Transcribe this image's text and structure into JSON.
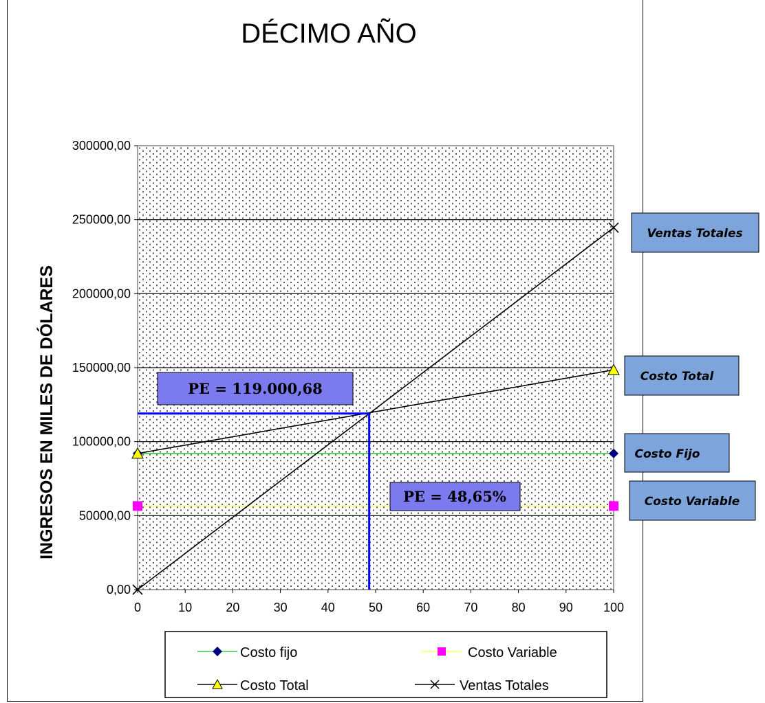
{
  "chart_data": {
    "type": "line",
    "title": "DÉCIMO AÑO",
    "xlabel": "",
    "ylabel": "INGRESOS EN MILES DE DÓLARES",
    "xlim": [
      0,
      100
    ],
    "ylim": [
      0,
      300000
    ],
    "x_ticks": [
      "0",
      "10",
      "20",
      "30",
      "40",
      "50",
      "60",
      "70",
      "80",
      "90",
      "100"
    ],
    "y_ticks": [
      "0,00",
      "50000,00",
      "100000,00",
      "150000,00",
      "200000,00",
      "250000,00",
      "300000,00"
    ],
    "grid": "horizontal",
    "legend_position": "bottom",
    "series": [
      {
        "name": "Costo fijo",
        "x": [
          0,
          100
        ],
        "y": [
          92000,
          92000
        ],
        "line_color": "#33cc33",
        "marker": "diamond",
        "marker_color": "#000080"
      },
      {
        "name": "Costo Variable",
        "x": [
          0,
          100
        ],
        "y": [
          56500,
          56500
        ],
        "line_color": "#ffff66",
        "marker": "square",
        "marker_color": "#ff00ff"
      },
      {
        "name": "Costo Total",
        "x": [
          0,
          100
        ],
        "y": [
          92000,
          148500
        ],
        "line_color": "#000000",
        "marker": "triangle",
        "marker_color": "#ffff00"
      },
      {
        "name": "Ventas Totales",
        "x": [
          0,
          100
        ],
        "y": [
          0,
          244600
        ],
        "line_color": "#000000",
        "marker": "x",
        "marker_color": "#000000"
      }
    ],
    "break_even": {
      "x": 48.65,
      "y": 119000.68,
      "line_color": "#0000ff"
    },
    "annotations": {
      "pe_value": "PE = 119.000,68",
      "pe_percent": "PE = 48,65%",
      "ventas_totales": "Ventas Totales",
      "costo_total": "Costo Total",
      "costo_fijo": "Costo Fijo",
      "costo_variable": "Costo Variable"
    },
    "colors": {
      "pe_box": "#7b7bef",
      "callout_box": "#7da5dc"
    }
  }
}
